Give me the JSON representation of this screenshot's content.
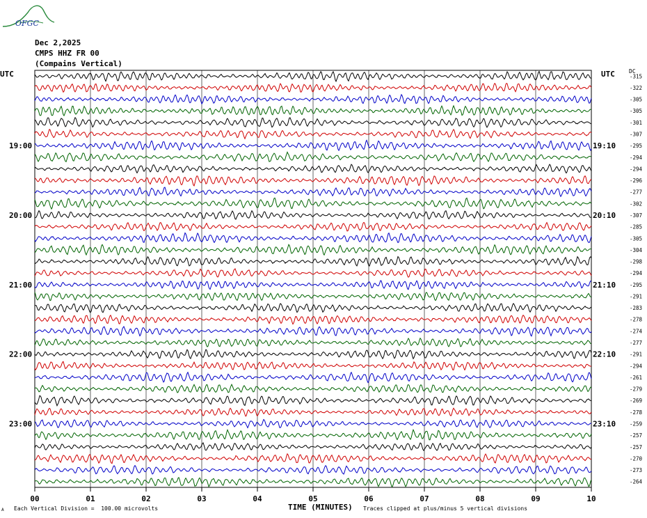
{
  "logo": {
    "text": "OFGC"
  },
  "header": {
    "date": "Dec 2,2025",
    "station": "CMPS HHZ FR 00",
    "component": "(Compains Vertical)"
  },
  "utc_left": "UTC",
  "utc_right": "UTC",
  "dc_label": "DC",
  "x_axis_title": "TIME (MINUTES)",
  "footer": {
    "corner_mark": "A",
    "scale_note": "Each Vertical Division =  100.00 microvolts",
    "clip_note": "Traces clipped at plus/minus 5 vertical divisions"
  },
  "colors": {
    "trace_cycle": [
      "#000000",
      "#d00000",
      "#0000c8",
      "#006400"
    ],
    "grid": "#000000",
    "logo": "#2a8a3c",
    "logo_text": "#1a3a9a"
  },
  "chart_data": {
    "type": "line",
    "xlabel": "TIME (MINUTES)",
    "x_ticks": [
      "00",
      "01",
      "02",
      "03",
      "04",
      "05",
      "06",
      "07",
      "08",
      "09",
      "10"
    ],
    "xlim": [
      0,
      10
    ],
    "hour_labels_left": [
      "19:00",
      "20:00",
      "21:00",
      "22:00",
      "23:00"
    ],
    "hour_labels_right": [
      "19:10",
      "20:10",
      "21:10",
      "22:10",
      "23:10"
    ],
    "hour_label_rows": [
      6,
      12,
      18,
      24,
      30
    ],
    "dc_offsets": [
      -315,
      -322,
      -305,
      -305,
      -301,
      -307,
      -295,
      -294,
      -294,
      -296,
      -277,
      -302,
      -307,
      -285,
      -305,
      -304,
      -298,
      -294,
      -295,
      -291,
      -283,
      -278,
      -274,
      -277,
      -291,
      -294,
      -261,
      -279,
      -269,
      -278,
      -259,
      -257,
      -257,
      -270,
      -273,
      -264
    ],
    "grid": true
  }
}
